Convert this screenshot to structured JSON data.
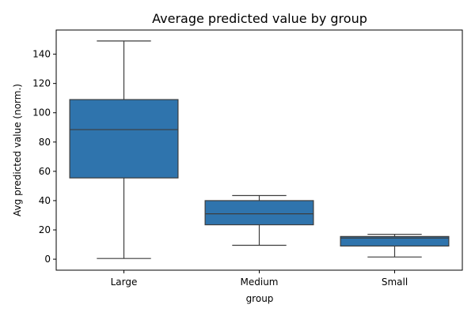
{
  "chart_data": {
    "type": "box",
    "title": "Average predicted value by group",
    "xlabel": "group",
    "ylabel": "Avg predicted value (norm.)",
    "categories": [
      "Large",
      "Medium",
      "Small"
    ],
    "ylim": [
      -7.5,
      156.5
    ],
    "yticks": [
      0,
      20,
      40,
      60,
      80,
      100,
      120,
      140
    ],
    "grid": false,
    "boxes": [
      {
        "category": "Large",
        "whisker_low": 0.5,
        "q1": 55.5,
        "median": 88.5,
        "q3": 109,
        "whisker_high": 149
      },
      {
        "category": "Medium",
        "whisker_low": 9.5,
        "q1": 23.5,
        "median": 31,
        "q3": 40,
        "whisker_high": 43.5
      },
      {
        "category": "Small",
        "whisker_low": 1.5,
        "q1": 9,
        "median": 14.5,
        "q3": 15.5,
        "whisker_high": 17
      }
    ],
    "colors": {
      "box_fill": "#2f74ad",
      "line": "#3d3d3d"
    }
  }
}
